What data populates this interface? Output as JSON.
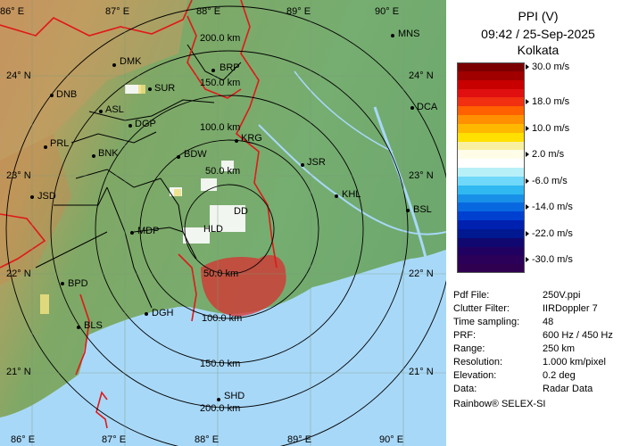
{
  "panel": {
    "title": "PPI (V)",
    "datetime": "09:42 / 25-Sep-2025",
    "station": "Kolkata",
    "scale": [
      {
        "label": "30.0 m/s",
        "color": "#7a0000"
      },
      {
        "label": "",
        "color": "#a00000"
      },
      {
        "label": "",
        "color": "#c80000"
      },
      {
        "label": "",
        "color": "#e01010"
      },
      {
        "label": "18.0 m/s",
        "color": "#f03010"
      },
      {
        "label": "",
        "color": "#ff6000"
      },
      {
        "label": "",
        "color": "#ff9000"
      },
      {
        "label": "10.0 m/s",
        "color": "#ffb800"
      },
      {
        "label": "",
        "color": "#ffe000"
      },
      {
        "label": "",
        "color": "#f8f0a0"
      },
      {
        "label": "2.0 m/s",
        "color": "#fffce8"
      },
      {
        "label": "",
        "color": "#ffffff"
      },
      {
        "label": "",
        "color": "#b8f0f8"
      },
      {
        "label": "-6.0 m/s",
        "color": "#70d8f8"
      },
      {
        "label": "",
        "color": "#30b8f0"
      },
      {
        "label": "",
        "color": "#1890e8"
      },
      {
        "label": "-14.0 m/s",
        "color": "#0868e0"
      },
      {
        "label": "",
        "color": "#0040d0"
      },
      {
        "label": "",
        "color": "#0020b0"
      },
      {
        "label": "-22.0 m/s",
        "color": "#001890"
      },
      {
        "label": "",
        "color": "#100870"
      },
      {
        "label": "",
        "color": "#200060"
      },
      {
        "label": "-30.0 m/s",
        "color": "#2a0058"
      },
      {
        "label": "",
        "color": "#300050"
      }
    ],
    "info": [
      {
        "key": "Pdf File:",
        "value": "250V.ppi"
      },
      {
        "key": "Clutter Filter:",
        "value": "IIRDoppler 7"
      },
      {
        "key": "Time sampling:",
        "value": "48"
      },
      {
        "key": "PRF:",
        "value": "600 Hz / 450 Hz"
      },
      {
        "key": "Range:",
        "value": "250 km"
      },
      {
        "key": "Resolution:",
        "value": "1.000 km/pixel"
      },
      {
        "key": "Elevation:",
        "value": "0.2 deg"
      },
      {
        "key": "Data:",
        "value": "Radar Data"
      }
    ],
    "vendor": "Rainbow® SELEX-SI"
  },
  "map": {
    "lon_top": [
      "86° E",
      "87° E",
      "88° E",
      "89° E",
      "90° E"
    ],
    "lon_bottom": [
      "86° E",
      "87° E",
      "88° E",
      "89° E",
      "90° E"
    ],
    "lat_left": [
      "24° N",
      "23° N",
      "22° N",
      "21° N"
    ],
    "lat_right": [
      "24° N",
      "23° N",
      "22° N",
      "21° N"
    ],
    "rings_north": [
      "200.0 km",
      "150.0 km",
      "100.0 km",
      "50.0 km"
    ],
    "rings_south": [
      "50.0 km",
      "100.0 km",
      "150.0 km",
      "200.0 km"
    ],
    "cities": [
      "MNS",
      "DMK",
      "BRP",
      "DNB",
      "SUR",
      "DCA",
      "ASL",
      "DGP",
      "KRG",
      "PRL",
      "BNK",
      "BDW",
      "JSR",
      "KHL",
      "JSD",
      "DD",
      "BSL",
      "MDP",
      "HLD",
      "BPD",
      "DGH",
      "BLS",
      "SHD"
    ]
  }
}
